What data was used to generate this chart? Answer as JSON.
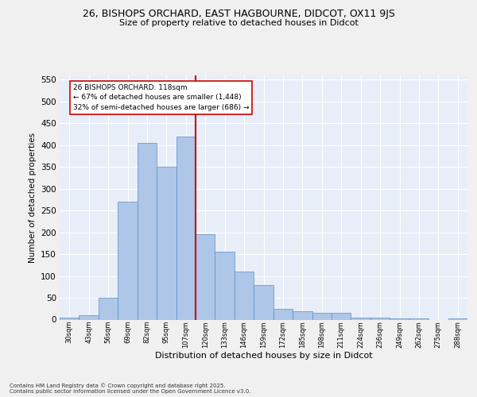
{
  "title1": "26, BISHOPS ORCHARD, EAST HAGBOURNE, DIDCOT, OX11 9JS",
  "title2": "Size of property relative to detached houses in Didcot",
  "xlabel": "Distribution of detached houses by size in Didcot",
  "ylabel": "Number of detached properties",
  "categories": [
    "30sqm",
    "43sqm",
    "56sqm",
    "69sqm",
    "82sqm",
    "95sqm",
    "107sqm",
    "120sqm",
    "133sqm",
    "146sqm",
    "159sqm",
    "172sqm",
    "185sqm",
    "198sqm",
    "211sqm",
    "224sqm",
    "236sqm",
    "249sqm",
    "262sqm",
    "275sqm",
    "288sqm"
  ],
  "bar_heights": [
    5,
    10,
    50,
    270,
    405,
    350,
    420,
    195,
    155,
    110,
    80,
    25,
    20,
    15,
    15,
    5,
    5,
    3,
    2,
    0,
    2
  ],
  "bar_color": "#aec6e8",
  "bar_edge_color": "#5b8fc9",
  "vline_color": "#cc0000",
  "vline_pos": 6.5,
  "annotation_line1": "26 BISHOPS ORCHARD: 118sqm",
  "annotation_line2": "← 67% of detached houses are smaller (1,448)",
  "annotation_line3": "32% of semi-detached houses are larger (686) →",
  "ann_box_facecolor": "#ffffff",
  "ann_box_edgecolor": "#cc0000",
  "ylim": [
    0,
    560
  ],
  "yticks": [
    0,
    50,
    100,
    150,
    200,
    250,
    300,
    350,
    400,
    450,
    500,
    550
  ],
  "bg_color": "#e8eef7",
  "grid_color": "#ffffff",
  "fig_facecolor": "#f0f0f0",
  "footer1": "Contains HM Land Registry data © Crown copyright and database right 2025.",
  "footer2": "Contains public sector information licensed under the Open Government Licence v3.0."
}
